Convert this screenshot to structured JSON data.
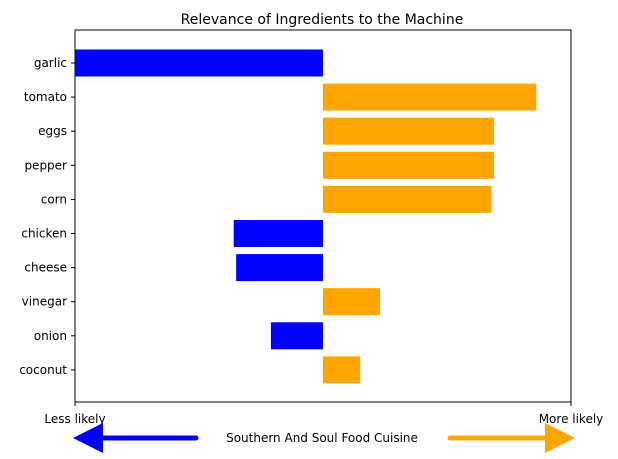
{
  "chart_data": {
    "type": "bar",
    "orientation": "horizontal",
    "title": "Relevance of Ingredients to the Machine",
    "categories": [
      "garlic",
      "tomato",
      "eggs",
      "pepper",
      "corn",
      "chicken",
      "cheese",
      "vinegar",
      "onion",
      "coconut"
    ],
    "values": [
      -1.0,
      0.86,
      0.69,
      0.69,
      0.68,
      -0.36,
      -0.35,
      0.23,
      -0.21,
      0.15
    ],
    "xlim": [
      -1.0,
      1.0
    ],
    "xtick_labels": [
      "Less likely",
      "More likely"
    ],
    "xlabel": "Southern And Soul Food Cuisine",
    "colors": {
      "negative": "#0000ff",
      "positive": "#ffa500"
    },
    "grid": false,
    "legend": "none"
  }
}
